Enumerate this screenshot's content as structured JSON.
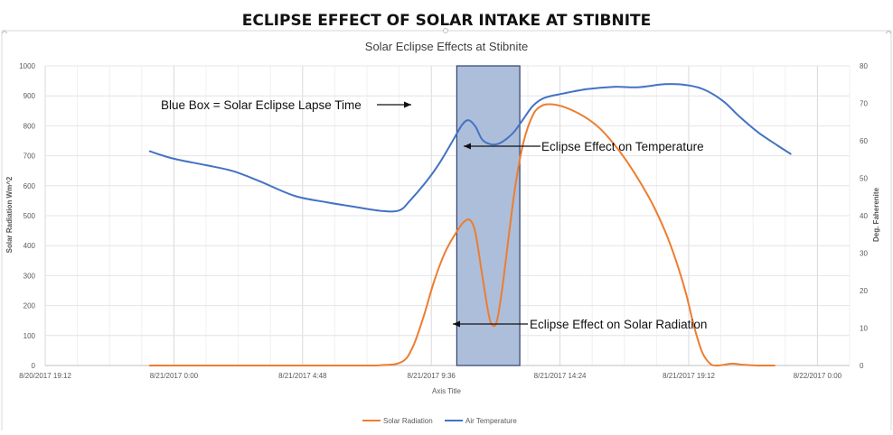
{
  "page_title": "ECLIPSE EFFECT OF SOLAR INTAKE AT STIBNITE",
  "colors": {
    "solar": "#ED7D31",
    "air": "#4472C4",
    "eclipse_fill": "#A9BBD8",
    "eclipse_stroke": "#2F3F70",
    "grid": "#E4E4E4",
    "axis_text": "#595959"
  },
  "chart_data": {
    "type": "line",
    "title": "Solar Eclipse Effects at Stibnite",
    "xlabel": "Axis Title",
    "ylabel": "Solar Radiation Wm^2",
    "y2label": "Deg. Faherenite",
    "grid": true,
    "legend_position": "bottom",
    "x_unit": "hours since 8/20/2017 19:12",
    "xlim": [
      0,
      30
    ],
    "ylim": [
      0,
      1000
    ],
    "y2lim": [
      0,
      80
    ],
    "x_ticks": [
      {
        "x": 0,
        "label": "8/20/2017 19:12"
      },
      {
        "x": 4.8,
        "label": "8/21/2017 0:00"
      },
      {
        "x": 9.6,
        "label": "8/21/2017 4:48"
      },
      {
        "x": 14.4,
        "label": "8/21/2017 9:36"
      },
      {
        "x": 19.2,
        "label": "8/21/2017 14:24"
      },
      {
        "x": 24.0,
        "label": "8/21/2017 19:12"
      },
      {
        "x": 28.8,
        "label": "8/22/2017 0:00"
      }
    ],
    "y_ticks": [
      0,
      100,
      200,
      300,
      400,
      500,
      600,
      700,
      800,
      900,
      1000
    ],
    "y2_ticks": [
      0,
      10,
      20,
      30,
      40,
      50,
      60,
      70,
      80
    ],
    "eclipse_window": {
      "x_start": 15.35,
      "x_end": 17.7,
      "label": "Blue Box = Solar Eclipse Lapse Time"
    },
    "annotations": [
      {
        "text": "Eclipse Effect on Temperature",
        "x": 17.6,
        "y": 740
      },
      {
        "text": "Eclipse Effect on Solar Radiation",
        "x": 16.9,
        "y": 135
      }
    ],
    "series": [
      {
        "name": "Solar Radiation",
        "axis": "left",
        "points": [
          [
            3.9,
            0
          ],
          [
            5,
            0
          ],
          [
            7,
            0
          ],
          [
            9,
            0
          ],
          [
            11,
            0
          ],
          [
            12.5,
            1
          ],
          [
            13.3,
            12
          ],
          [
            13.7,
            60
          ],
          [
            14.1,
            160
          ],
          [
            14.5,
            280
          ],
          [
            14.9,
            375
          ],
          [
            15.3,
            440
          ],
          [
            15.6,
            478
          ],
          [
            15.85,
            485
          ],
          [
            16.05,
            440
          ],
          [
            16.3,
            300
          ],
          [
            16.55,
            165
          ],
          [
            16.7,
            133
          ],
          [
            16.85,
            150
          ],
          [
            17.05,
            260
          ],
          [
            17.3,
            440
          ],
          [
            17.55,
            610
          ],
          [
            17.85,
            750
          ],
          [
            18.2,
            838
          ],
          [
            18.5,
            866
          ],
          [
            18.8,
            872
          ],
          [
            19.2,
            867
          ],
          [
            19.7,
            850
          ],
          [
            20.2,
            825
          ],
          [
            20.7,
            790
          ],
          [
            21.2,
            740
          ],
          [
            21.7,
            680
          ],
          [
            22.2,
            610
          ],
          [
            22.7,
            530
          ],
          [
            23.2,
            430
          ],
          [
            23.6,
            330
          ],
          [
            23.9,
            240
          ],
          [
            24.2,
            130
          ],
          [
            24.5,
            45
          ],
          [
            24.8,
            6
          ],
          [
            25.1,
            0
          ],
          [
            25.6,
            6
          ],
          [
            26.1,
            2
          ],
          [
            26.6,
            0
          ],
          [
            27.2,
            0
          ]
        ]
      },
      {
        "name": "Air Temperature",
        "axis": "right",
        "points": [
          [
            3.9,
            57.2
          ],
          [
            4.8,
            55.2
          ],
          [
            6,
            53.5
          ],
          [
            7,
            51.9
          ],
          [
            8,
            49.2
          ],
          [
            9.3,
            45.3
          ],
          [
            10.5,
            43.6
          ],
          [
            11.5,
            42.4
          ],
          [
            12.5,
            41.3
          ],
          [
            13.2,
            41.4
          ],
          [
            13.6,
            44
          ],
          [
            14.2,
            49
          ],
          [
            14.7,
            54
          ],
          [
            15.2,
            60
          ],
          [
            15.55,
            64.3
          ],
          [
            15.8,
            65.5
          ],
          [
            16.05,
            63.7
          ],
          [
            16.3,
            60.3
          ],
          [
            16.6,
            59.1
          ],
          [
            16.9,
            59.2
          ],
          [
            17.2,
            60.5
          ],
          [
            17.5,
            62.5
          ],
          [
            17.85,
            66
          ],
          [
            18.2,
            69.4
          ],
          [
            18.6,
            71.4
          ],
          [
            19.3,
            72.6
          ],
          [
            20.2,
            73.8
          ],
          [
            21.2,
            74.4
          ],
          [
            22.1,
            74.3
          ],
          [
            23.1,
            75.1
          ],
          [
            23.9,
            74.9
          ],
          [
            24.6,
            73.6
          ],
          [
            25.3,
            70.5
          ],
          [
            25.9,
            66.4
          ],
          [
            26.6,
            62.2
          ],
          [
            27.3,
            58.8
          ],
          [
            27.8,
            56.5
          ]
        ]
      }
    ]
  }
}
